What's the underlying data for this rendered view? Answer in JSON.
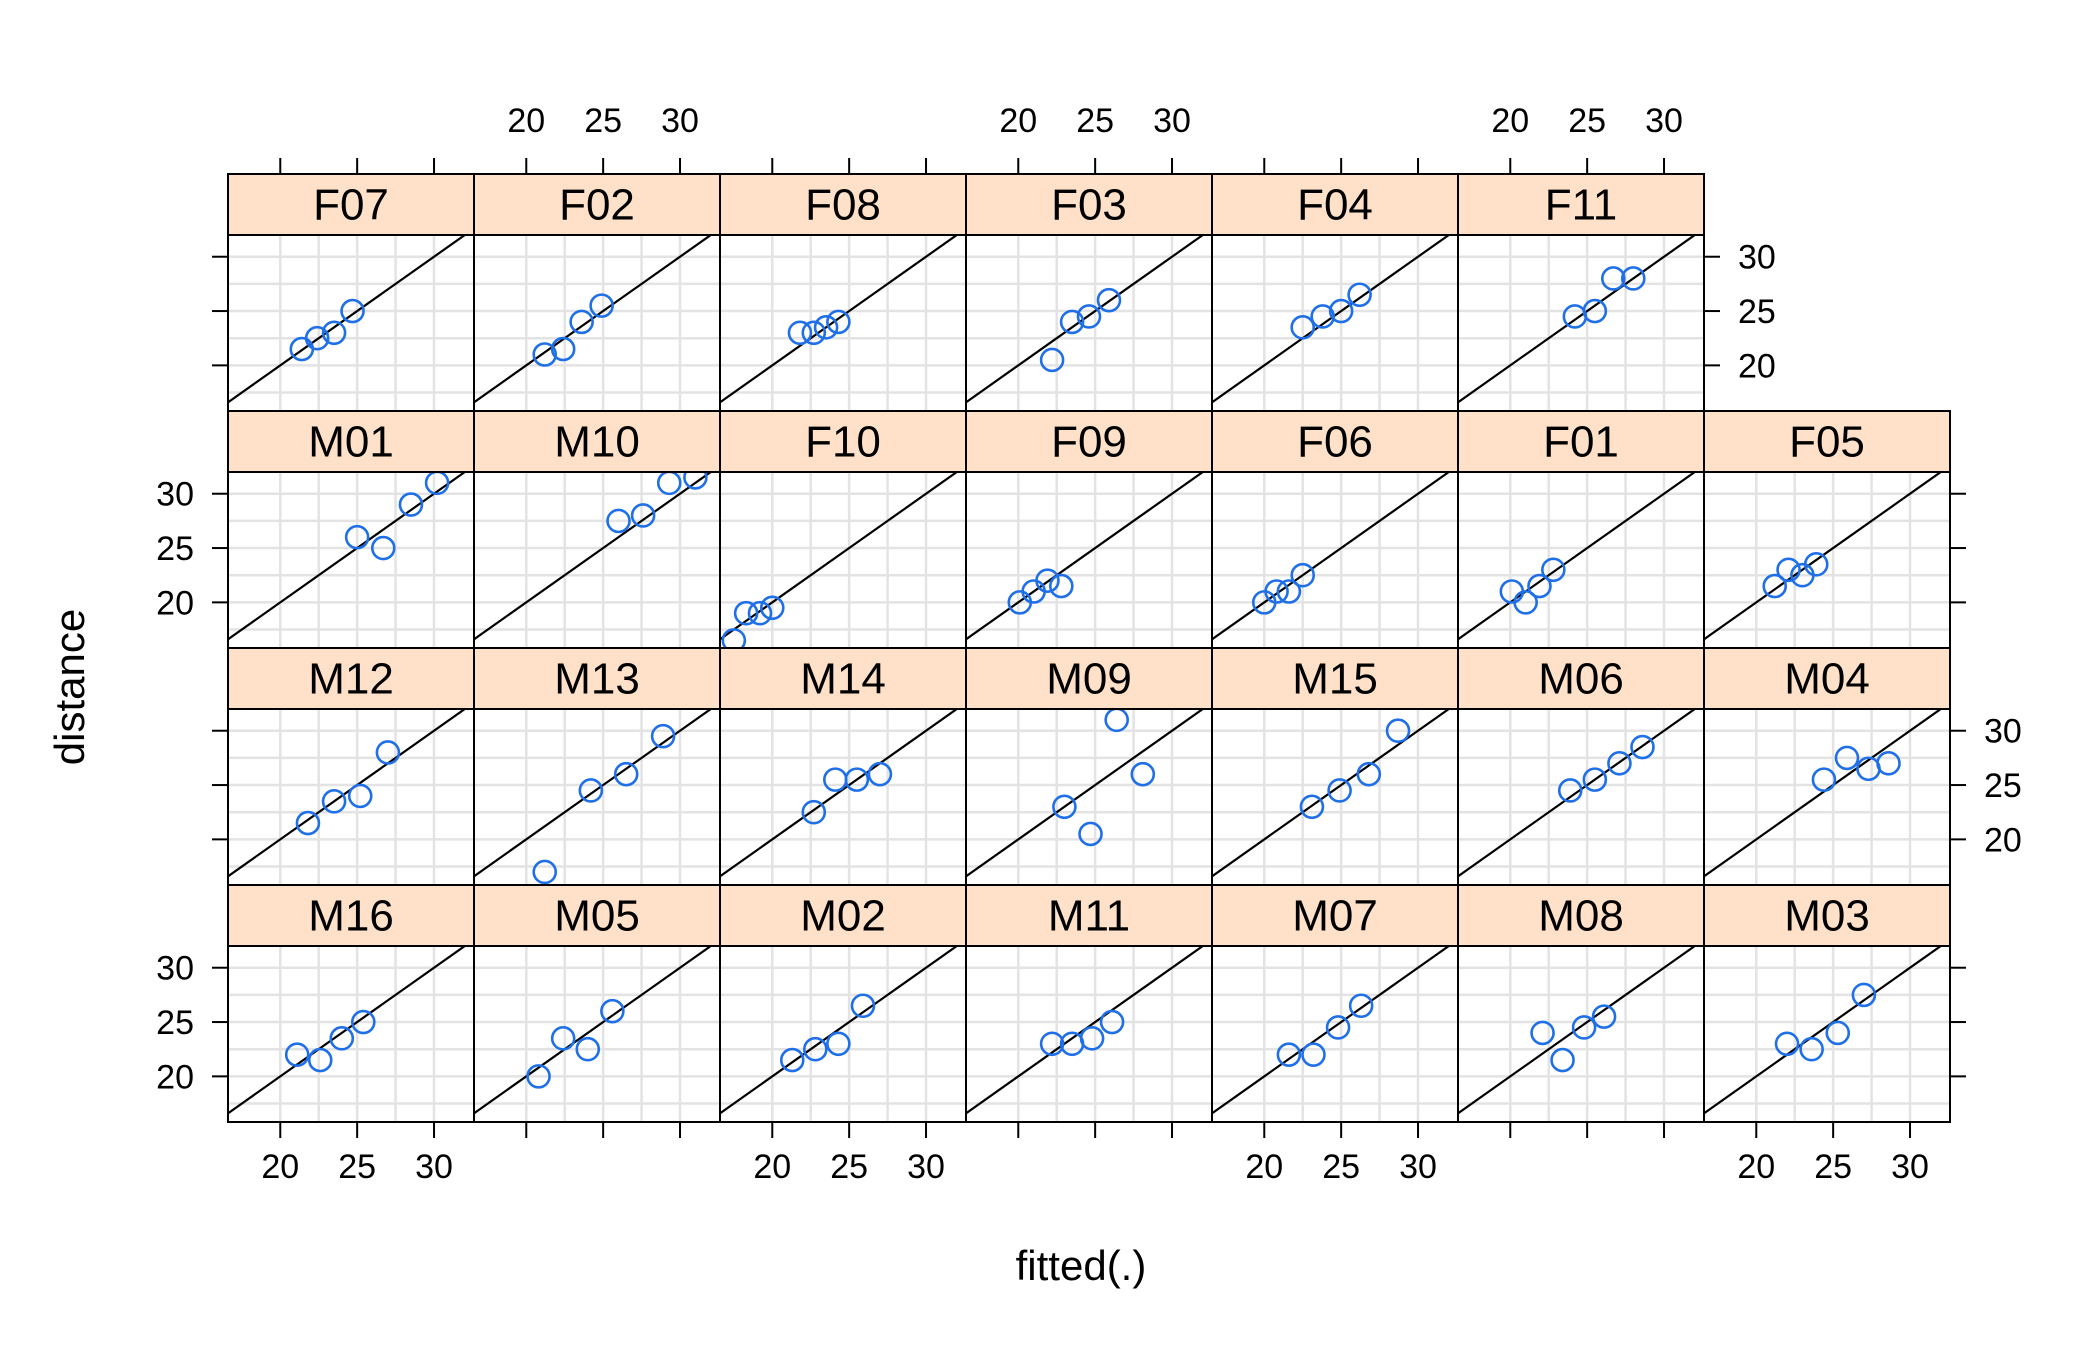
{
  "chart_data": {
    "type": "scatter",
    "title": "",
    "xlabel": "fitted(.)",
    "ylabel": "distance",
    "xlim": [
      16.6,
      32.6
    ],
    "ylim": [
      15.8,
      32.0
    ],
    "x_ticks": [
      20,
      25,
      30
    ],
    "y_ticks": [
      20,
      25,
      30
    ],
    "reference_line": "y = x",
    "grid": true,
    "colors": {
      "points": "#1f6fe8",
      "strip_fill": "#ffe0c8",
      "grid": "#e3e3e3",
      "line": "#000000",
      "frame": "#000000"
    },
    "panels": [
      {
        "label": "F07",
        "row": 0,
        "col": 0,
        "points": [
          [
            21.4,
            21.5
          ],
          [
            22.4,
            22.5
          ],
          [
            23.5,
            23.0
          ],
          [
            24.7,
            25.0
          ]
        ]
      },
      {
        "label": "F02",
        "row": 0,
        "col": 1,
        "points": [
          [
            21.2,
            21.0
          ],
          [
            22.4,
            21.5
          ],
          [
            23.6,
            24.0
          ],
          [
            24.9,
            25.5
          ]
        ]
      },
      {
        "label": "F08",
        "row": 0,
        "col": 2,
        "points": [
          [
            21.8,
            23.0
          ],
          [
            22.7,
            23.0
          ],
          [
            23.5,
            23.5
          ],
          [
            24.3,
            24.0
          ]
        ]
      },
      {
        "label": "F03",
        "row": 0,
        "col": 3,
        "points": [
          [
            22.2,
            20.5
          ],
          [
            23.5,
            24.0
          ],
          [
            24.6,
            24.5
          ],
          [
            25.9,
            26.0
          ]
        ]
      },
      {
        "label": "F04",
        "row": 0,
        "col": 4,
        "points": [
          [
            22.5,
            23.5
          ],
          [
            23.8,
            24.5
          ],
          [
            25.0,
            25.0
          ],
          [
            26.2,
            26.5
          ]
        ]
      },
      {
        "label": "F11",
        "row": 0,
        "col": 5,
        "points": [
          [
            24.2,
            24.5
          ],
          [
            25.5,
            25.0
          ],
          [
            26.7,
            28.0
          ],
          [
            28.0,
            28.0
          ]
        ]
      },
      {
        "label": "M01",
        "row": 1,
        "col": 0,
        "points": [
          [
            25.0,
            26.0
          ],
          [
            26.7,
            25.0
          ],
          [
            28.5,
            29.0
          ],
          [
            30.2,
            31.0
          ]
        ]
      },
      {
        "label": "M10",
        "row": 1,
        "col": 1,
        "points": [
          [
            26.0,
            27.5
          ],
          [
            27.6,
            28.0
          ],
          [
            29.3,
            31.0
          ],
          [
            31.0,
            31.5
          ]
        ]
      },
      {
        "label": "F10",
        "row": 1,
        "col": 2,
        "points": [
          [
            17.5,
            16.5
          ],
          [
            18.3,
            19.0
          ],
          [
            19.2,
            19.0
          ],
          [
            20.0,
            19.5
          ]
        ]
      },
      {
        "label": "F09",
        "row": 1,
        "col": 3,
        "points": [
          [
            20.1,
            20.0
          ],
          [
            21.0,
            21.0
          ],
          [
            21.9,
            22.0
          ],
          [
            22.8,
            21.5
          ]
        ]
      },
      {
        "label": "F06",
        "row": 1,
        "col": 4,
        "points": [
          [
            20.0,
            20.0
          ],
          [
            20.8,
            21.0
          ],
          [
            21.6,
            21.0
          ],
          [
            22.5,
            22.5
          ]
        ]
      },
      {
        "label": "F01",
        "row": 1,
        "col": 5,
        "points": [
          [
            20.1,
            21.0
          ],
          [
            21.0,
            20.0
          ],
          [
            21.9,
            21.5
          ],
          [
            22.8,
            23.0
          ]
        ]
      },
      {
        "label": "F05",
        "row": 1,
        "col": 6,
        "points": [
          [
            21.2,
            21.5
          ],
          [
            22.1,
            23.0
          ],
          [
            23.0,
            22.5
          ],
          [
            23.9,
            23.5
          ]
        ]
      },
      {
        "label": "M12",
        "row": 2,
        "col": 0,
        "points": [
          [
            21.8,
            21.5
          ],
          [
            23.5,
            23.5
          ],
          [
            25.2,
            24.0
          ],
          [
            27.0,
            28.0
          ]
        ]
      },
      {
        "label": "M13",
        "row": 2,
        "col": 1,
        "points": [
          [
            21.2,
            17.0
          ],
          [
            24.2,
            24.5
          ],
          [
            26.5,
            26.0
          ],
          [
            28.9,
            29.5
          ]
        ]
      },
      {
        "label": "M14",
        "row": 2,
        "col": 2,
        "points": [
          [
            22.7,
            22.5
          ],
          [
            24.1,
            25.5
          ],
          [
            25.5,
            25.5
          ],
          [
            27.0,
            26.0
          ]
        ]
      },
      {
        "label": "M09",
        "row": 2,
        "col": 3,
        "points": [
          [
            23.0,
            23.0
          ],
          [
            24.7,
            20.5
          ],
          [
            26.4,
            31.0
          ],
          [
            28.1,
            26.0
          ]
        ]
      },
      {
        "label": "M15",
        "row": 2,
        "col": 4,
        "points": [
          [
            23.1,
            23.0
          ],
          [
            24.9,
            24.5
          ],
          [
            26.8,
            26.0
          ],
          [
            28.7,
            30.0
          ]
        ]
      },
      {
        "label": "M06",
        "row": 2,
        "col": 5,
        "points": [
          [
            23.9,
            24.5
          ],
          [
            25.5,
            25.5
          ],
          [
            27.1,
            27.0
          ],
          [
            28.6,
            28.5
          ]
        ]
      },
      {
        "label": "M04",
        "row": 2,
        "col": 6,
        "points": [
          [
            24.4,
            25.5
          ],
          [
            25.9,
            27.5
          ],
          [
            27.3,
            26.5
          ],
          [
            28.6,
            27.0
          ]
        ]
      },
      {
        "label": "M16",
        "row": 3,
        "col": 0,
        "points": [
          [
            21.1,
            22.0
          ],
          [
            22.6,
            21.5
          ],
          [
            24.0,
            23.5
          ],
          [
            25.4,
            25.0
          ]
        ]
      },
      {
        "label": "M05",
        "row": 3,
        "col": 1,
        "points": [
          [
            20.8,
            20.0
          ],
          [
            22.4,
            23.5
          ],
          [
            24.0,
            22.5
          ],
          [
            25.6,
            26.0
          ]
        ]
      },
      {
        "label": "M02",
        "row": 3,
        "col": 2,
        "points": [
          [
            21.3,
            21.5
          ],
          [
            22.8,
            22.5
          ],
          [
            24.3,
            23.0
          ],
          [
            25.9,
            26.5
          ]
        ]
      },
      {
        "label": "M11",
        "row": 3,
        "col": 3,
        "points": [
          [
            22.2,
            23.0
          ],
          [
            23.5,
            23.0
          ],
          [
            24.8,
            23.5
          ],
          [
            26.1,
            25.0
          ]
        ]
      },
      {
        "label": "M07",
        "row": 3,
        "col": 4,
        "points": [
          [
            21.6,
            22.0
          ],
          [
            23.2,
            22.0
          ],
          [
            24.8,
            24.5
          ],
          [
            26.3,
            26.5
          ]
        ]
      },
      {
        "label": "M08",
        "row": 3,
        "col": 5,
        "points": [
          [
            22.1,
            24.0
          ],
          [
            23.4,
            21.5
          ],
          [
            24.8,
            24.5
          ],
          [
            26.1,
            25.5
          ]
        ]
      },
      {
        "label": "M03",
        "row": 3,
        "col": 6,
        "points": [
          [
            22.0,
            23.0
          ],
          [
            23.6,
            22.5
          ],
          [
            25.3,
            24.0
          ],
          [
            27.0,
            27.5
          ]
        ]
      }
    ]
  }
}
